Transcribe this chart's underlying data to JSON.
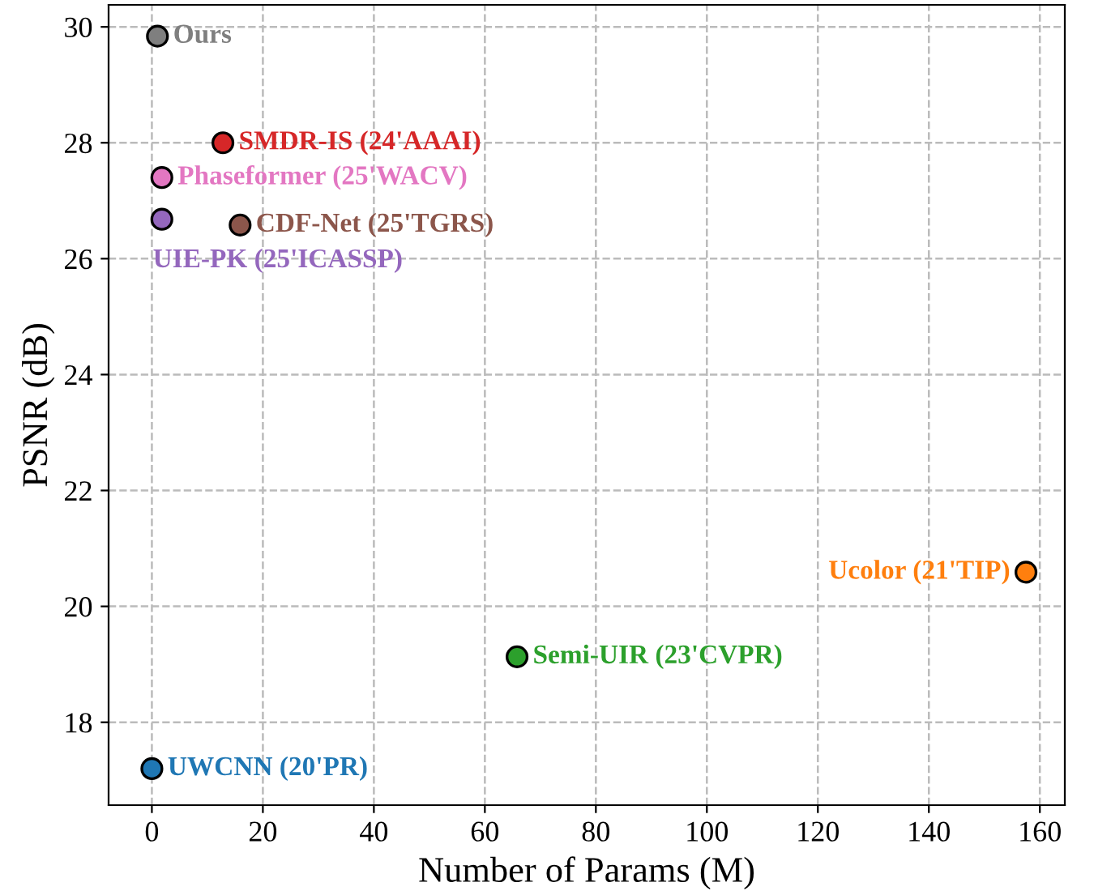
{
  "chart_data": {
    "type": "scatter",
    "xlabel": "Number of Params (M)",
    "ylabel": "PSNR (dB)",
    "xlim": [
      -7.8,
      164.5
    ],
    "ylim": [
      16.57,
      30.38
    ],
    "xticks": [
      0,
      20,
      40,
      60,
      80,
      100,
      120,
      140,
      160
    ],
    "yticks": [
      18,
      20,
      22,
      24,
      26,
      28,
      30
    ],
    "grid": true,
    "marker": "circle",
    "legend": false,
    "series": [
      {
        "name": "Ours",
        "color": "#7f7f7f",
        "x": [
          1.0
        ],
        "values": [
          29.84
        ]
      },
      {
        "name": "SMDR-IS (24'AAAI)",
        "color": "#d62728",
        "x": [
          12.8
        ],
        "values": [
          28.0
        ]
      },
      {
        "name": "Phaseformer (25'WACV)",
        "color": "#e377c2",
        "x": [
          1.8
        ],
        "values": [
          27.4
        ]
      },
      {
        "name": "UIE-PK (25'ICASSP)",
        "color": "#9467bd",
        "x": [
          1.8
        ],
        "values": [
          26.68
        ]
      },
      {
        "name": "CDF-Net (25'TGRS)",
        "color": "#8c564b",
        "x": [
          15.9
        ],
        "values": [
          26.58
        ]
      },
      {
        "name": "Ucolor (21'TIP)",
        "color": "#ff7f0e",
        "x": [
          157.5
        ],
        "values": [
          20.59
        ]
      },
      {
        "name": "Semi-UIR (23'CVPR)",
        "color": "#2ca02c",
        "x": [
          65.8
        ],
        "values": [
          19.13
        ]
      },
      {
        "name": "UWCNN (20'PR)",
        "color": "#1f77b4",
        "x": [
          0.0
        ],
        "values": [
          17.2
        ]
      }
    ]
  }
}
